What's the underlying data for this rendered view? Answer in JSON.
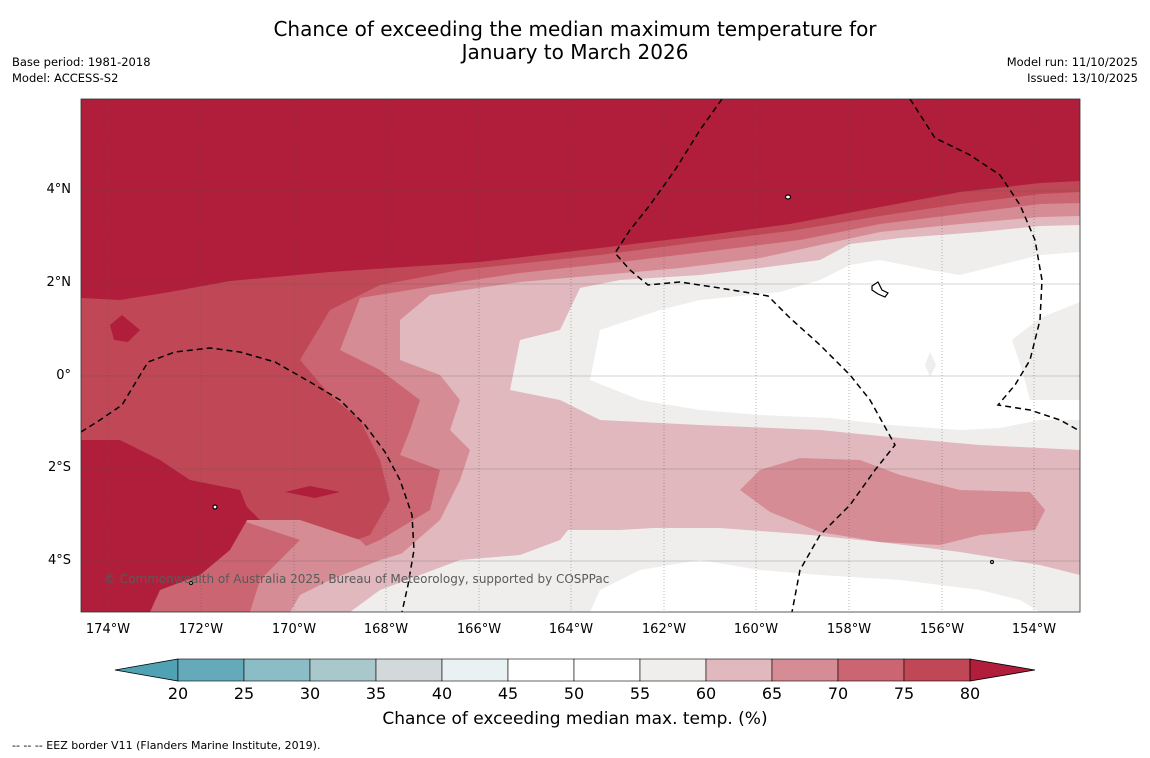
{
  "title_line1": "Chance of exceeding the median maximum temperature for",
  "title_line2": "January to March 2026",
  "base_period": "Base period: 1981-2018",
  "model": "Model: ACCESS-S2",
  "model_run": "Model run: 11/10/2025",
  "issued": "Issued: 13/10/2025",
  "lat_labels": [
    "4°N",
    "2°N",
    "0°",
    "2°S",
    "4°S"
  ],
  "lon_labels": [
    "174°W",
    "172°W",
    "170°W",
    "168°W",
    "166°W",
    "164°W",
    "162°W",
    "160°W",
    "158°W",
    "156°W",
    "154°W"
  ],
  "copyright": "© Commonwealth of Australia 2025, Bureau of Meteorology, supported by COSPPac",
  "colorbar": {
    "ticks": [
      "20",
      "25",
      "30",
      "35",
      "40",
      "45",
      "50",
      "55",
      "60",
      "65",
      "70",
      "75",
      "80"
    ],
    "colors": [
      "#65aabb",
      "#8bbdc7",
      "#a9c8cc",
      "#d3d9da",
      "#eaf1f2",
      "#ffffff",
      "#ffffff",
      "#efeeed",
      "#e0b8be",
      "#d58c95",
      "#cb6572",
      "#c04856"
    ],
    "under_color": "#4fa2b4",
    "over_color": "#b01e3b",
    "label": "Chance of exceeding median max. temp. (%)"
  },
  "footnote": "--  --  -- EEZ border V11 (Flanders Marine Institute, 2019)."
}
